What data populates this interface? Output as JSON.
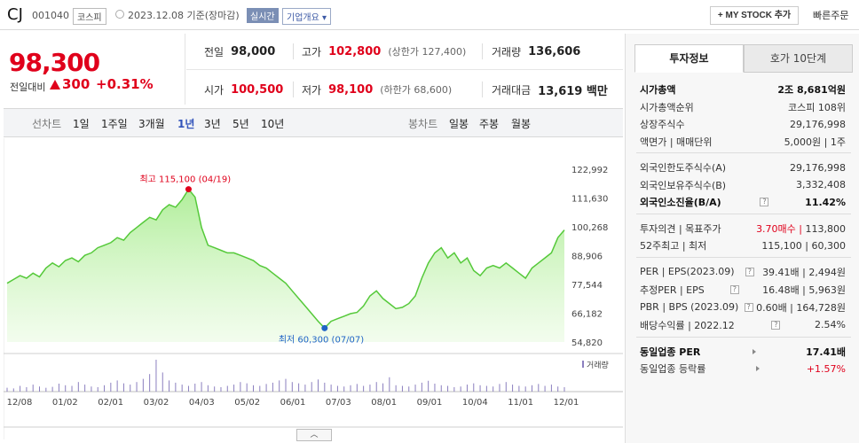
{
  "header": {
    "name": "CJ",
    "code": "001040",
    "market": "코스피",
    "date": "2023.12.08 기준(장마감)",
    "realtime": "실시간",
    "overview": "기업개요",
    "mystock": "+ MY STOCK 추가",
    "fast_order": "빠른주문"
  },
  "price": {
    "current": "98,300",
    "change_label": "전일대비",
    "change": "300",
    "change_pct": "+0.31%"
  },
  "summary": {
    "prev_label": "전일",
    "prev": "98,000",
    "high_label": "고가",
    "high": "102,800",
    "upper_limit": "(상한가 127,400)",
    "volume_label": "거래량",
    "volume": "136,606",
    "open_label": "시가",
    "open": "100,500",
    "low_label": "저가",
    "low": "98,100",
    "lower_limit": "(하한가 68,600)",
    "amount_label": "거래대금",
    "amount": "13,619 백만"
  },
  "periods": {
    "line_label": "선차트",
    "line": [
      "1일",
      "1주일",
      "3개월",
      "1년",
      "3년",
      "5년",
      "10년"
    ],
    "selected": "1년",
    "candle_label": "봉차트",
    "candle": [
      "일봉",
      "주봉",
      "월봉"
    ]
  },
  "chart_data": {
    "type": "area",
    "x_ticks": [
      "12/08",
      "01/02",
      "02/01",
      "03/02",
      "04/03",
      "05/02",
      "06/01",
      "07/03",
      "08/01",
      "09/01",
      "10/04",
      "11/01",
      "12/01"
    ],
    "y_ticks": [
      "122,992",
      "111,630",
      "100,268",
      "88,906",
      "77,544",
      "66,182",
      "54,820"
    ],
    "ylim": [
      54820,
      122992
    ],
    "values": [
      78000,
      79500,
      81000,
      80000,
      82000,
      80500,
      84000,
      86000,
      84500,
      87000,
      88000,
      86500,
      89000,
      90000,
      92000,
      93000,
      94000,
      96000,
      95000,
      98000,
      100000,
      102000,
      104000,
      103000,
      107000,
      109000,
      108000,
      111000,
      115100,
      112000,
      100000,
      93000,
      92000,
      91000,
      90000,
      90000,
      89000,
      88000,
      87000,
      85000,
      84000,
      82000,
      80000,
      78000,
      75000,
      72000,
      69000,
      66000,
      63000,
      60300,
      63000,
      64000,
      65000,
      66000,
      66500,
      69000,
      73000,
      75000,
      72000,
      70000,
      68000,
      68500,
      70000,
      73000,
      80000,
      86000,
      90000,
      92000,
      88000,
      90000,
      86000,
      88000,
      83000,
      81000,
      84000,
      85000,
      84000,
      86000,
      84000,
      82000,
      80000,
      84000,
      86000,
      88000,
      90000,
      96000,
      99000
    ],
    "high_label": "최고 115,100 (04/19)",
    "low_label": "최저 60,300 (07/07)",
    "volume_label": "거래량",
    "volume": [
      12,
      10,
      18,
      14,
      22,
      16,
      12,
      15,
      25,
      20,
      18,
      30,
      22,
      16,
      14,
      20,
      28,
      35,
      26,
      22,
      30,
      40,
      55,
      100,
      60,
      35,
      28,
      22,
      18,
      25,
      30,
      20,
      16,
      14,
      18,
      22,
      30,
      26,
      20,
      18,
      24,
      28,
      35,
      40,
      30,
      26,
      22,
      30,
      38,
      28,
      22,
      18,
      16,
      20,
      24,
      18,
      22,
      30,
      26,
      45,
      20,
      18,
      16,
      22,
      28,
      34,
      25,
      20,
      18,
      14,
      16,
      22,
      26,
      20,
      18,
      16,
      24,
      30,
      22,
      18,
      16,
      20,
      24,
      18,
      22,
      16,
      14
    ]
  },
  "panel": {
    "tab_active": "투자정보",
    "tab_other": "호가 10단계",
    "rows_a": [
      {
        "k": "시가총액",
        "v": "2조 8,681억원",
        "bold": true
      },
      {
        "k": "시가총액순위",
        "v": "코스피 108위"
      },
      {
        "k": "상장주식수",
        "v": "29,176,998"
      },
      {
        "k": "액면가 | 매매단위",
        "v": "5,000원 | 1주"
      }
    ],
    "rows_b": [
      {
        "k": "외국인한도주식수(A)",
        "v": "29,176,998"
      },
      {
        "k": "외국인보유주식수(B)",
        "v": "3,332,408"
      },
      {
        "k": "외국인소진율(B/A)",
        "v": "11.42%",
        "bold": true
      }
    ],
    "rows_c": [
      {
        "k": "투자의견 | 목표주가",
        "v1": "3.70매수",
        "v": "113,800"
      },
      {
        "k": "52주최고 | 최저",
        "v": "115,100 | 60,300"
      }
    ],
    "rows_d": [
      {
        "k": "PER | EPS(2023.09)",
        "v": "39.41배 | 2,494원"
      },
      {
        "k": "추정PER | EPS",
        "v": "16.48배 | 5,963원"
      },
      {
        "k": "PBR | BPS (2023.09)",
        "v": "0.60배 | 164,728원"
      },
      {
        "k": "배당수익률 | 2022.12",
        "v": "2.54%"
      }
    ],
    "rows_e": [
      {
        "k": "동일업종 PER",
        "v": "17.41배",
        "bold": true
      },
      {
        "k": "동일업종 등락률",
        "v": "+1.57%"
      }
    ],
    "qm": "?"
  },
  "toggle": "︿"
}
